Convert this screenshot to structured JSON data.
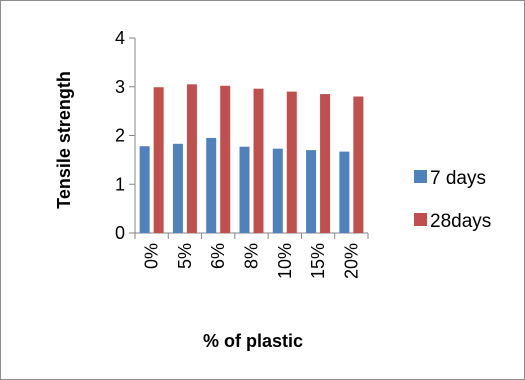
{
  "chart_data": {
    "type": "bar",
    "categories": [
      "0%",
      "5%",
      "6%",
      "8%",
      "10%",
      "15%",
      "20%"
    ],
    "series": [
      {
        "name": "7 days",
        "values": [
          1.78,
          1.83,
          1.95,
          1.77,
          1.73,
          1.7,
          1.67
        ],
        "color": "#4f81bd"
      },
      {
        "name": "28days",
        "values": [
          2.99,
          3.05,
          3.02,
          2.96,
          2.9,
          2.85,
          2.8
        ],
        "color": "#c0504d"
      }
    ],
    "xlabel": "% of plastic",
    "ylabel": "Tensile strength",
    "ylim": [
      0,
      4
    ],
    "yticks": [
      "0",
      "1",
      "2",
      "3",
      "4"
    ],
    "grid": false,
    "legend": "right"
  }
}
